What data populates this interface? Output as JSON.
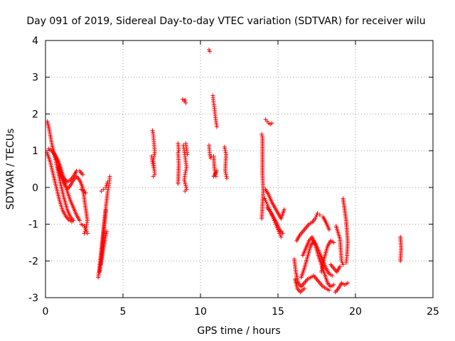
{
  "chart_data": {
    "type": "scatter",
    "title": "Day 091 of 2019, Sidereal Day-to-day VTEC variation (SDTVAR) for receiver wilu",
    "xlabel": "GPS time / hours",
    "ylabel": "SDTVAR / TECUs",
    "xlim": [
      0,
      25
    ],
    "ylim": [
      -3,
      4
    ],
    "xticks": [
      0,
      5,
      10,
      15,
      20,
      25
    ],
    "yticks": [
      -3,
      -2,
      -1,
      0,
      1,
      2,
      3,
      4
    ],
    "grid": true,
    "marker": "+",
    "color": "#ff0000",
    "series": [
      {
        "name": "SDTVAR",
        "segments": [
          [
            [
              0.12,
              1.8
            ],
            [
              0.25,
              1.55
            ],
            [
              0.4,
              1.2
            ],
            [
              0.6,
              0.85
            ],
            [
              0.8,
              0.45
            ],
            [
              1.0,
              0.05
            ],
            [
              1.2,
              -0.3
            ],
            [
              1.4,
              -0.6
            ],
            [
              1.6,
              -0.8
            ],
            [
              1.8,
              -0.9
            ]
          ],
          [
            [
              0.1,
              0.95
            ],
            [
              0.3,
              0.7
            ],
            [
              0.5,
              0.35
            ],
            [
              0.7,
              0.0
            ],
            [
              0.9,
              -0.35
            ],
            [
              1.1,
              -0.62
            ],
            [
              1.3,
              -0.78
            ],
            [
              1.5,
              -0.88
            ],
            [
              1.7,
              -0.93
            ]
          ],
          [
            [
              0.2,
              1.05
            ],
            [
              0.4,
              1.0
            ],
            [
              0.6,
              0.9
            ],
            [
              0.8,
              0.75
            ],
            [
              1.0,
              0.5
            ],
            [
              1.2,
              0.2
            ],
            [
              1.4,
              -0.1
            ],
            [
              1.6,
              -0.35
            ],
            [
              1.8,
              -0.55
            ],
            [
              2.0,
              -0.75
            ],
            [
              2.2,
              -0.9
            ]
          ],
          [
            [
              0.5,
              0.95
            ],
            [
              0.8,
              0.7
            ],
            [
              1.0,
              0.45
            ],
            [
              1.2,
              0.25
            ],
            [
              1.4,
              0.15
            ],
            [
              1.6,
              0.2
            ],
            [
              1.8,
              0.3
            ],
            [
              2.0,
              0.45
            ],
            [
              2.2,
              0.45
            ],
            [
              2.4,
              0.35
            ]
          ],
          [
            [
              0.8,
              0.55
            ],
            [
              1.0,
              0.3
            ],
            [
              1.2,
              0.1
            ],
            [
              1.4,
              -0.05
            ],
            [
              1.6,
              0.05
            ],
            [
              1.8,
              0.2
            ],
            [
              2.0,
              0.3
            ],
            [
              2.2,
              0.2
            ],
            [
              2.4,
              0.0
            ],
            [
              2.5,
              -0.3
            ],
            [
              2.6,
              -0.6
            ],
            [
              2.7,
              -0.9
            ],
            [
              2.6,
              -1.15
            ],
            [
              2.5,
              -1.25
            ]
          ],
          [
            [
              2.3,
              -1.0
            ],
            [
              2.5,
              -1.05
            ],
            [
              2.6,
              -1.15
            ],
            [
              2.7,
              -1.25
            ]
          ],
          [
            [
              2.3,
              -0.05
            ],
            [
              2.5,
              -0.1
            ],
            [
              2.6,
              -0.15
            ]
          ],
          [
            [
              3.4,
              -2.45
            ],
            [
              3.5,
              -2.1
            ],
            [
              3.6,
              -1.7
            ],
            [
              3.7,
              -1.3
            ],
            [
              3.8,
              -0.9
            ],
            [
              3.9,
              -0.5
            ],
            [
              4.0,
              -0.15
            ],
            [
              4.1,
              0.1
            ],
            [
              4.15,
              0.3
            ]
          ],
          [
            [
              3.5,
              -2.3
            ],
            [
              3.6,
              -1.95
            ],
            [
              3.7,
              -1.5
            ],
            [
              3.8,
              -1.0
            ],
            [
              3.9,
              -0.6
            ]
          ],
          [
            [
              3.55,
              -2.1
            ],
            [
              3.7,
              -1.75
            ],
            [
              3.85,
              -1.4
            ],
            [
              3.95,
              -1.2
            ]
          ],
          [
            [
              3.6,
              -0.1
            ],
            [
              3.75,
              -0.05
            ],
            [
              3.9,
              0.0
            ],
            [
              4.0,
              0.15
            ]
          ],
          [
            [
              6.9,
              1.55
            ],
            [
              6.95,
              1.45
            ],
            [
              7.0,
              1.2
            ],
            [
              7.05,
              0.95
            ],
            [
              6.95,
              0.75
            ],
            [
              7.0,
              0.55
            ],
            [
              7.05,
              0.35
            ],
            [
              6.95,
              0.3
            ]
          ],
          [
            [
              6.85,
              0.85
            ],
            [
              6.9,
              0.7
            ],
            [
              6.95,
              0.6
            ],
            [
              7.0,
              0.5
            ]
          ],
          [
            [
              8.55,
              1.2
            ],
            [
              8.6,
              1.0
            ],
            [
              8.55,
              0.95
            ],
            [
              8.6,
              0.62
            ],
            [
              8.55,
              0.1
            ]
          ],
          [
            [
              8.85,
              2.4
            ],
            [
              8.95,
              2.35
            ],
            [
              9.05,
              2.3
            ],
            [
              9.0,
              2.38
            ]
          ],
          [
            [
              8.9,
              1.15
            ],
            [
              8.95,
              1.0
            ],
            [
              9.0,
              0.85
            ],
            [
              9.05,
              0.7
            ],
            [
              9.1,
              0.55
            ],
            [
              9.0,
              0.35
            ],
            [
              8.95,
              0.2
            ],
            [
              9.05,
              0.05
            ],
            [
              9.1,
              -0.05
            ],
            [
              9.0,
              -0.1
            ]
          ],
          [
            [
              9.05,
              1.2
            ],
            [
              9.1,
              1.05
            ],
            [
              9.15,
              0.9
            ]
          ],
          [
            [
              10.55,
              3.75
            ],
            [
              10.6,
              3.7
            ]
          ],
          [
            [
              10.55,
              1.15
            ],
            [
              10.6,
              0.9
            ],
            [
              10.65,
              0.8
            ],
            [
              10.7,
              0.85
            ]
          ],
          [
            [
              10.8,
              2.5
            ],
            [
              10.85,
              2.3
            ],
            [
              10.9,
              2.15
            ],
            [
              10.95,
              1.95
            ],
            [
              11.0,
              1.8
            ],
            [
              11.05,
              1.65
            ]
          ],
          [
            [
              10.85,
              0.85
            ],
            [
              10.9,
              0.5
            ],
            [
              10.95,
              0.4
            ],
            [
              11.0,
              0.3
            ],
            [
              10.85,
              0.3
            ],
            [
              11.05,
              0.45
            ]
          ],
          [
            [
              11.55,
              1.1
            ],
            [
              11.6,
              1.0
            ],
            [
              11.65,
              0.9
            ],
            [
              11.6,
              0.45
            ],
            [
              11.65,
              0.35
            ],
            [
              11.7,
              0.25
            ]
          ],
          [
            [
              13.95,
              1.45
            ],
            [
              14.0,
              1.35
            ],
            [
              14.0,
              0.35
            ],
            [
              14.05,
              -0.1
            ],
            [
              13.95,
              -0.85
            ]
          ],
          [
            [
              14.2,
              1.85
            ],
            [
              14.3,
              1.8
            ],
            [
              14.4,
              1.75
            ],
            [
              14.5,
              1.72
            ],
            [
              14.6,
              1.75
            ]
          ],
          [
            [
              14.15,
              -0.3
            ],
            [
              14.3,
              -0.45
            ],
            [
              14.45,
              -0.6
            ],
            [
              14.6,
              -0.75
            ],
            [
              14.75,
              -0.9
            ],
            [
              14.9,
              -1.05
            ],
            [
              15.05,
              -1.2
            ],
            [
              15.2,
              -1.35
            ]
          ],
          [
            [
              14.2,
              -0.05
            ],
            [
              14.4,
              -0.2
            ],
            [
              14.6,
              -0.4
            ],
            [
              14.8,
              -0.55
            ],
            [
              15.0,
              -0.7
            ],
            [
              15.2,
              -0.85
            ],
            [
              15.4,
              -0.6
            ]
          ],
          [
            [
              14.3,
              -0.55
            ],
            [
              14.5,
              -0.65
            ],
            [
              14.7,
              -0.8
            ],
            [
              14.9,
              -0.95
            ],
            [
              15.1,
              -1.15
            ],
            [
              15.3,
              -1.25
            ]
          ],
          [
            [
              16.05,
              -1.95
            ],
            [
              16.15,
              -2.3
            ],
            [
              16.3,
              -2.6
            ],
            [
              16.5,
              -2.7
            ],
            [
              16.7,
              -2.6
            ],
            [
              16.9,
              -2.5
            ],
            [
              17.1,
              -2.45
            ],
            [
              17.3,
              -2.4
            ],
            [
              17.5,
              -2.5
            ],
            [
              17.7,
              -2.6
            ],
            [
              17.9,
              -2.7
            ],
            [
              18.1,
              -2.75
            ],
            [
              18.3,
              -2.8
            ]
          ],
          [
            [
              16.1,
              -2.5
            ],
            [
              16.25,
              -2.75
            ],
            [
              16.45,
              -2.85
            ],
            [
              16.7,
              -2.75
            ]
          ],
          [
            [
              16.2,
              -1.45
            ],
            [
              16.4,
              -1.3
            ],
            [
              16.6,
              -1.2
            ],
            [
              16.8,
              -1.1
            ],
            [
              17.0,
              -1.0
            ],
            [
              17.2,
              -0.95
            ],
            [
              17.4,
              -0.85
            ],
            [
              17.55,
              -0.7
            ],
            [
              17.7,
              -0.75
            ]
          ],
          [
            [
              16.5,
              -2.45
            ],
            [
              16.7,
              -2.2
            ],
            [
              16.9,
              -1.9
            ],
            [
              17.1,
              -1.6
            ],
            [
              17.3,
              -1.45
            ],
            [
              17.5,
              -1.6
            ],
            [
              17.7,
              -1.8
            ],
            [
              17.9,
              -2.0
            ],
            [
              18.1,
              -2.2
            ],
            [
              18.3,
              -2.35
            ],
            [
              18.5,
              -2.4
            ]
          ],
          [
            [
              16.6,
              -1.85
            ],
            [
              16.8,
              -1.65
            ],
            [
              17.0,
              -1.45
            ],
            [
              17.2,
              -1.35
            ],
            [
              17.4,
              -1.55
            ],
            [
              17.6,
              -1.85
            ],
            [
              17.8,
              -2.1
            ],
            [
              18.0,
              -2.35
            ],
            [
              18.2,
              -2.6
            ],
            [
              18.4,
              -2.7
            ],
            [
              18.6,
              -2.65
            ]
          ],
          [
            [
              17.8,
              -2.3
            ],
            [
              18.0,
              -1.9
            ],
            [
              18.2,
              -1.6
            ],
            [
              18.4,
              -1.45
            ],
            [
              18.6,
              -1.5
            ]
          ],
          [
            [
              17.9,
              -0.8
            ],
            [
              18.1,
              -0.95
            ],
            [
              18.3,
              -1.15
            ]
          ],
          [
            [
              18.4,
              -2.1
            ],
            [
              18.6,
              -2.2
            ],
            [
              18.8,
              -2.3
            ],
            [
              19.0,
              -2.15
            ]
          ],
          [
            [
              18.7,
              -2.85
            ],
            [
              18.9,
              -2.75
            ],
            [
              19.1,
              -2.6
            ],
            [
              19.3,
              -2.65
            ],
            [
              19.5,
              -2.6
            ]
          ],
          [
            [
              18.75,
              -1.05
            ],
            [
              19.0,
              -1.4
            ],
            [
              19.05,
              -1.7
            ],
            [
              19.1,
              -2.0
            ],
            [
              19.2,
              -2.1
            ]
          ],
          [
            [
              19.2,
              -0.3
            ],
            [
              19.3,
              -0.6
            ],
            [
              19.4,
              -0.9
            ],
            [
              19.45,
              -1.2
            ],
            [
              19.5,
              -1.5
            ],
            [
              19.45,
              -1.85
            ],
            [
              19.4,
              -2.05
            ]
          ],
          [
            [
              22.9,
              -1.35
            ],
            [
              22.95,
              -1.65
            ],
            [
              22.9,
              -2.0
            ]
          ]
        ]
      }
    ]
  }
}
